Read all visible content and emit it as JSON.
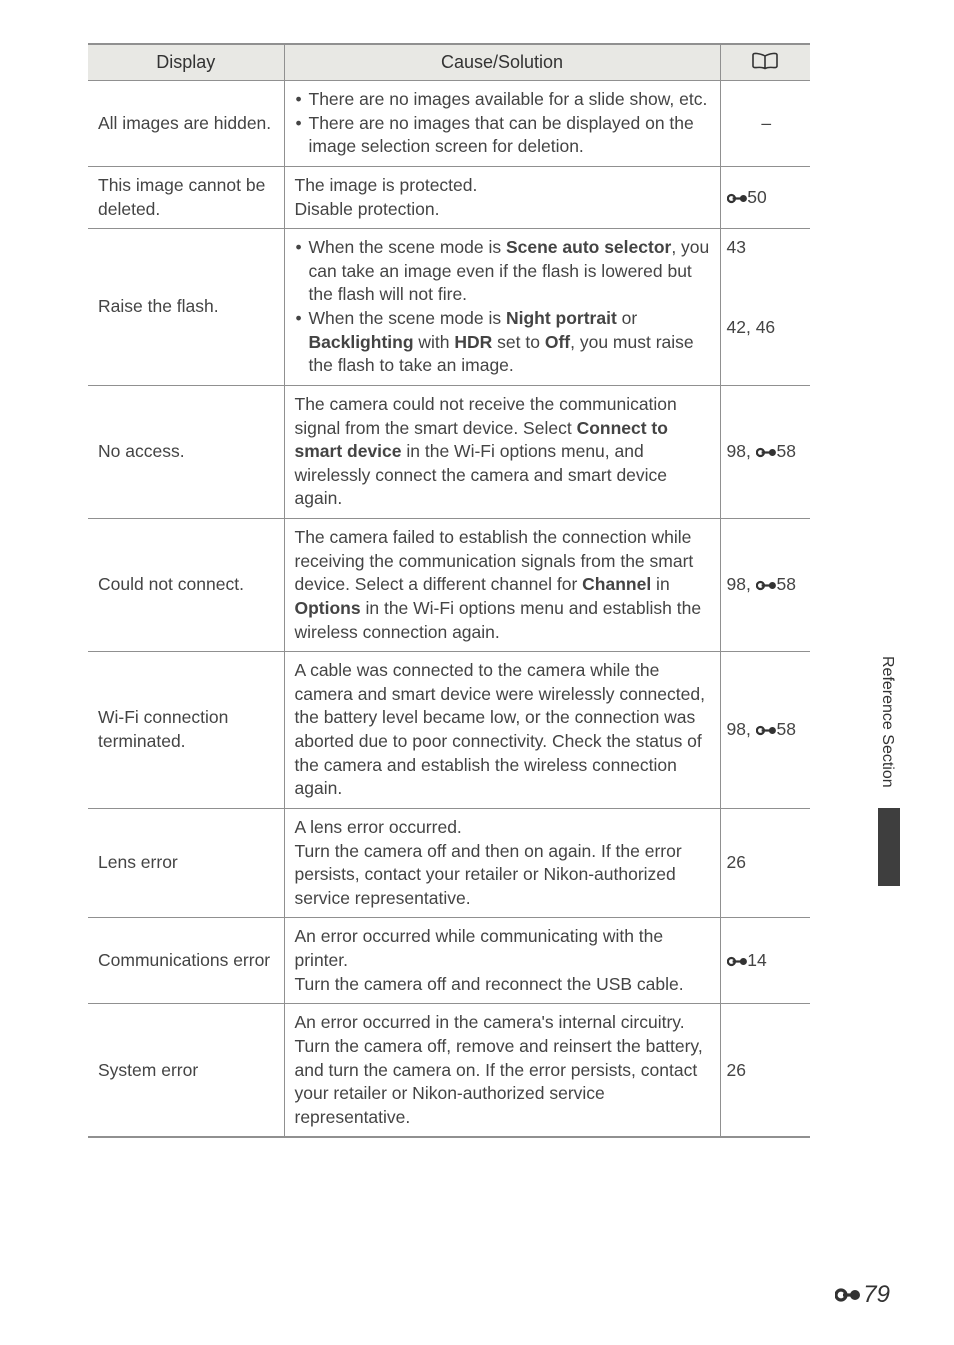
{
  "table": {
    "headers": {
      "display": "Display",
      "cause": "Cause/Solution",
      "ref_icon": "book"
    },
    "header_bg": "#e8e8e4",
    "border_color": "#909090",
    "font_size_body": 17.5,
    "font_size_header": 18,
    "rows": [
      {
        "display": "All images are hidden.",
        "cause_bullets": [
          "There are no images available for a slide show, etc.",
          "There are no images that can be displayed on the image selection screen for deletion."
        ],
        "ref_plain": "–",
        "ref_align": "center"
      },
      {
        "display": "This image cannot be deleted.",
        "cause_lines": [
          "The image is protected.",
          "Disable protection."
        ],
        "ref_icon_num": "50"
      },
      {
        "display": "Raise the flash.",
        "cause_bullets_rich": [
          [
            {
              "t": "When the scene mode is "
            },
            {
              "t": "Scene auto selector",
              "b": true
            },
            {
              "t": ", you can take an image even if the flash is lowered but the flash will not fire."
            }
          ],
          [
            {
              "t": "When the scene mode is "
            },
            {
              "t": "Night portrait",
              "b": true
            },
            {
              "t": " or "
            },
            {
              "t": "Backlighting",
              "b": true
            },
            {
              "t": " with "
            },
            {
              "t": "HDR",
              "b": true
            },
            {
              "t": " set to "
            },
            {
              "t": "Off",
              "b": true
            },
            {
              "t": ", you must raise the flash to take an image."
            }
          ]
        ],
        "ref_two": [
          "43",
          "42, 46"
        ],
        "ref_valign": "top"
      },
      {
        "display": "No access.",
        "cause_rich": [
          {
            "t": "The camera could not receive the communication signal from the smart device. Select "
          },
          {
            "t": "Connect to smart device",
            "b": true
          },
          {
            "t": " in the Wi-Fi options menu, and wirelessly connect the camera and smart device again."
          }
        ],
        "ref_num_icon": {
          "pre": "98, ",
          "num": "58"
        }
      },
      {
        "display": "Could not connect.",
        "cause_rich": [
          {
            "t": "The camera failed to establish the connection while receiving the communication signals from the smart device. Select a different channel for "
          },
          {
            "t": "Channel",
            "b": true
          },
          {
            "t": " in "
          },
          {
            "t": "Options",
            "b": true
          },
          {
            "t": " in the Wi-Fi options menu and establish the wireless connection again."
          }
        ],
        "ref_num_icon": {
          "pre": "98, ",
          "num": "58"
        }
      },
      {
        "display": "Wi-Fi connection terminated.",
        "cause_plain": "A cable was connected to the camera while the camera and smart device were wirelessly connected, the battery level became low, or the connection was aborted due to poor connectivity. Check the status of the camera and establish the wireless connection again.",
        "ref_num_icon": {
          "pre": "98, ",
          "num": "58"
        }
      },
      {
        "display": "Lens error",
        "cause_lines": [
          "A lens error occurred.",
          "Turn the camera off and then on again. If the error persists, contact your retailer or Nikon-authorized service representative."
        ],
        "ref_plain": "26"
      },
      {
        "display": "Communications error",
        "cause_lines": [
          "An error occurred while communicating with the printer.",
          "Turn the camera off and reconnect the USB cable."
        ],
        "ref_icon_num": "14"
      },
      {
        "display": "System error",
        "cause_lines": [
          "An error occurred in the camera's internal circuitry.",
          "Turn the camera off, remove and reinsert the battery, and turn the camera on. If the error persists, contact your retailer or Nikon-authorized service representative."
        ],
        "ref_plain": "26",
        "last": true
      }
    ]
  },
  "side_label": "Reference Section",
  "side_bar_color": "#3e3e3e",
  "page_number": "79",
  "colors": {
    "text": "#333333",
    "bg": "#ffffff"
  }
}
